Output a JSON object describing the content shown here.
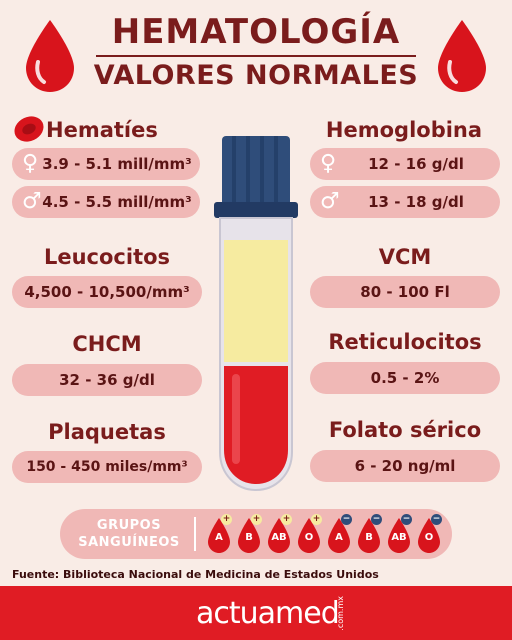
{
  "header": {
    "title": "HEMATOLOGÍA",
    "subtitle": "VALORES NORMALES"
  },
  "colors": {
    "background": "#f9ece6",
    "maroon": "#7a1c1c",
    "pill": "#f0b8b6",
    "blood": "#e01c24",
    "plasma": "#f6eba0",
    "cap": "#2f4d7a"
  },
  "sections": {
    "hematies": {
      "label": "Hematíes",
      "female": "3.9 - 5.1 mill/mm³",
      "male": "4.5 - 5.5 mill/mm³"
    },
    "hemoglobina": {
      "label": "Hemoglobina",
      "female": "12 - 16 g/dl",
      "male": "13 - 18 g/dl"
    },
    "leucocitos": {
      "label": "Leucocitos",
      "value": "4,500 - 10,500/mm³"
    },
    "vcm": {
      "label": "VCM",
      "value": "80 - 100 Fl"
    },
    "chcm": {
      "label": "CHCM",
      "value": "32 - 36 g/dl"
    },
    "reticulocitos": {
      "label": "Reticulocitos",
      "value": "0.5 - 2%"
    },
    "plaquetas": {
      "label": "Plaquetas",
      "value": "150 - 450 miles/mm³"
    },
    "folato": {
      "label": "Folato sérico",
      "value": "6 - 20 ng/ml"
    }
  },
  "symbols": {
    "female": "♀",
    "male": "♂"
  },
  "blood_groups": {
    "label_line1": "GRUPOS",
    "label_line2": "SANGUÍNEOS",
    "groups": [
      {
        "type": "A",
        "sign": "+"
      },
      {
        "type": "B",
        "sign": "+"
      },
      {
        "type": "AB",
        "sign": "+"
      },
      {
        "type": "O",
        "sign": "+"
      },
      {
        "type": "A",
        "sign": "−"
      },
      {
        "type": "B",
        "sign": "−"
      },
      {
        "type": "AB",
        "sign": "−"
      },
      {
        "type": "O",
        "sign": "−"
      }
    ]
  },
  "source": "Fuente: Biblioteca Nacional de Medicina de Estados Unidos",
  "footer": {
    "brand": "actuamed",
    "tld": ".com.mx"
  }
}
